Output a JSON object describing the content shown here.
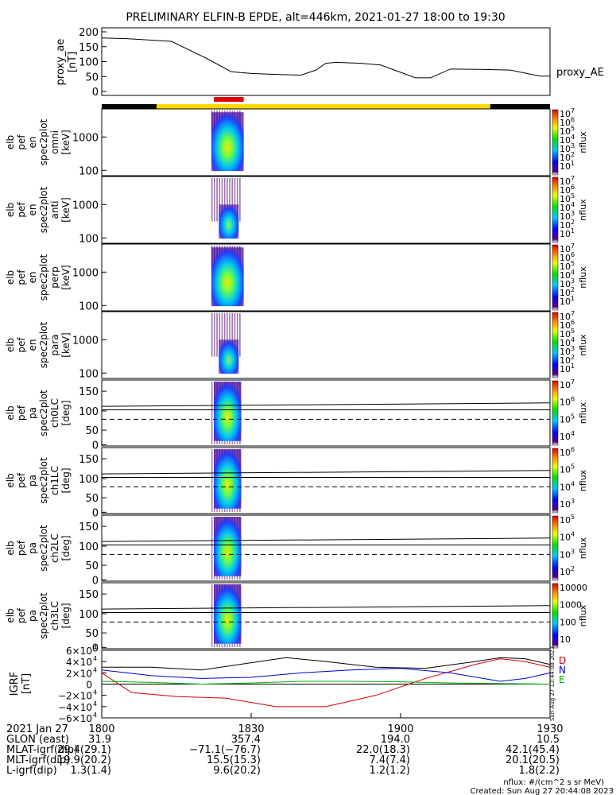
{
  "title": "PRELIMINARY ELFIN-B EPDE, alt=446km, 2021-01-27 18:00 to 19:30",
  "colors": {
    "bar_dark": "#000000",
    "bar_science": "#ffd800",
    "bar_red": "#e00000",
    "igrf_d": "#d00000",
    "igrf_n": "#0000d0",
    "igrf_e": "#00b000",
    "igrf_total": "#000000"
  },
  "panels": {
    "ae": {
      "ylabel": [
        "proxy_ae",
        "[nT]"
      ],
      "ticks": [
        "200",
        "150",
        "100",
        "50",
        "0"
      ],
      "series_label": "proxy_AE"
    },
    "omni": {
      "ylabel": [
        "elb",
        "pef",
        "en",
        "spec2plot",
        "omni",
        "[keV]"
      ],
      "ticks": [
        "1000",
        "100"
      ],
      "cbar_ticks": [
        "10",
        "10",
        "10",
        "10",
        "10",
        "10",
        "10"
      ],
      "cbar_exps": [
        "7",
        "6",
        "5",
        "4",
        "3",
        "2",
        "1"
      ],
      "cbar_label": "nflux"
    },
    "anti": {
      "ylabel": [
        "elb",
        "pef",
        "en",
        "spec2plot",
        "anti",
        "[keV]"
      ],
      "ticks": [
        "1000",
        "100"
      ],
      "cbar_ticks": [
        "10",
        "10",
        "10",
        "10",
        "10",
        "10",
        "10"
      ],
      "cbar_exps": [
        "7",
        "6",
        "5",
        "4",
        "3",
        "2",
        "1"
      ],
      "cbar_label": "nflux"
    },
    "perp": {
      "ylabel": [
        "elb",
        "pef",
        "en",
        "spec2plot",
        "perp",
        "[keV]"
      ],
      "ticks": [
        "1000",
        "100"
      ],
      "cbar_ticks": [
        "10",
        "10",
        "10",
        "10",
        "10",
        "10",
        "10"
      ],
      "cbar_exps": [
        "7",
        "6",
        "5",
        "4",
        "3",
        "2",
        "1"
      ],
      "cbar_label": "nflux"
    },
    "para": {
      "ylabel": [
        "elb",
        "pef",
        "en",
        "spec2plot",
        "para",
        "[keV]"
      ],
      "ticks": [
        "1000",
        "100"
      ],
      "cbar_ticks": [
        "10",
        "10",
        "10",
        "10",
        "10",
        "10",
        "10"
      ],
      "cbar_exps": [
        "7",
        "6",
        "5",
        "4",
        "3",
        "2",
        "1"
      ],
      "cbar_label": "nflux"
    },
    "ch0": {
      "ylabel": [
        "elb",
        "pef",
        "pa",
        "spec2plot",
        "ch0LC",
        "[deg]"
      ],
      "ticks": [
        "150",
        "100",
        "50",
        "0"
      ],
      "cbar_ticks": [
        "10",
        "10",
        "10",
        "10"
      ],
      "cbar_exps": [
        "7",
        "6",
        "5",
        "4"
      ],
      "cbar_label": "nflux"
    },
    "ch1": {
      "ylabel": [
        "elb",
        "pef",
        "pa",
        "spec2plot",
        "ch1LC",
        "[deg]"
      ],
      "ticks": [
        "150",
        "100",
        "50",
        "0"
      ],
      "cbar_ticks": [
        "10",
        "10",
        "10",
        "10"
      ],
      "cbar_exps": [
        "6",
        "5",
        "4",
        "3"
      ],
      "cbar_label": "nflux"
    },
    "ch2": {
      "ylabel": [
        "elb",
        "pef",
        "pa",
        "spec2plot",
        "ch2LC",
        "[deg]"
      ],
      "ticks": [
        "150",
        "100",
        "50",
        "0"
      ],
      "cbar_ticks": [
        "10",
        "10",
        "10",
        "10"
      ],
      "cbar_exps": [
        "5",
        "4",
        "3",
        "2"
      ],
      "cbar_label": "nflux"
    },
    "ch3": {
      "ylabel": [
        "elb",
        "pef",
        "pa",
        "spec2plot",
        "ch3LC",
        "[deg]"
      ],
      "ticks": [
        "150",
        "100",
        "50",
        "0"
      ],
      "cbar_ticks": [
        "10000",
        "1000",
        "100",
        "10"
      ],
      "cbar_label": "nflux"
    },
    "igrf": {
      "ylabel": [
        "IGRF",
        "[nT]"
      ],
      "ticks": [
        "6×10",
        "4×10",
        "2×10",
        "0",
        "−2×10",
        "−4×10",
        "−6×10"
      ],
      "tick_exp": "4",
      "legend": [
        "D",
        "N",
        "E"
      ],
      "stamp": "Sun Aug 27 13:44:08 2023"
    }
  },
  "footer": {
    "date": "2021 Jan 27",
    "xticks": [
      "1800",
      "1830",
      "1900",
      "1930"
    ],
    "rows": [
      {
        "label": "GLON (east)",
        "values": [
          "31.9",
          "357.4",
          "194.0",
          "10.5"
        ]
      },
      {
        "label": "MLAT-igrf(dip)",
        "values": [
          "29.4(29.1)",
          "−71.1(−76.7)",
          "22.0(18.3)",
          "42.1(45.4)"
        ]
      },
      {
        "label": "MLT-igrf(dip)",
        "values": [
          "19.9(20.2)",
          "15.5(15.3)",
          "7.4(7.4)",
          "20.1(20.5)"
        ]
      },
      {
        "label": "L-igrf(dip)",
        "values": [
          "1.3(1.4)",
          "9.6(20.2)",
          "1.2(1.2)",
          "1.8(2.2)"
        ]
      }
    ],
    "units_note": "nflux: #/(cm^2 s sr MeV)",
    "created": "Created: Sun Aug 27 20:44:08 2023"
  },
  "chart_data": {
    "type": "line",
    "title": "PRELIMINARY ELFIN-B EPDE, alt=446km, 2021-01-27 18:00 to 19:30",
    "x_range_minutes": [
      0,
      90
    ],
    "ae": {
      "ylim": [
        0,
        200
      ],
      "x": [
        0,
        5,
        14,
        21,
        26,
        30,
        35,
        40,
        43,
        45,
        47,
        52,
        56,
        63,
        66,
        70,
        76,
        82,
        88,
        90
      ],
      "y": [
        170,
        168,
        160,
        110,
        70,
        65,
        62,
        60,
        75,
        95,
        98,
        95,
        90,
        52,
        52,
        78,
        77,
        75,
        57,
        57
      ]
    },
    "igrf": {
      "ylim": [
        -60000,
        60000
      ],
      "series": [
        {
          "name": "D",
          "x": [
            0,
            6,
            15,
            25,
            35,
            45,
            55,
            65,
            75,
            80,
            85,
            90
          ],
          "y": [
            20000,
            -15000,
            -22000,
            -25000,
            -40000,
            -40000,
            -20000,
            10000,
            35000,
            45000,
            40000,
            30000
          ]
        },
        {
          "name": "N",
          "x": [
            0,
            10,
            20,
            30,
            40,
            50,
            60,
            70,
            80,
            85,
            90
          ],
          "y": [
            25000,
            15000,
            10000,
            12000,
            20000,
            25000,
            28000,
            20000,
            5000,
            10000,
            20000
          ]
        },
        {
          "name": "E",
          "x": [
            0,
            10,
            20,
            30,
            40,
            50,
            60,
            70,
            80,
            90
          ],
          "y": [
            5000,
            3000,
            0,
            2000,
            5000,
            5000,
            4000,
            2000,
            1000,
            0
          ]
        },
        {
          "name": "total",
          "x": [
            0,
            10,
            20,
            30,
            37,
            45,
            55,
            65,
            75,
            80,
            85,
            90
          ],
          "y": [
            30000,
            30000,
            25000,
            38000,
            47000,
            40000,
            30000,
            28000,
            40000,
            47000,
            45000,
            35000
          ]
        }
      ]
    }
  }
}
